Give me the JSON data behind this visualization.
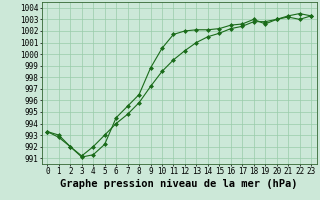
{
  "title": "Graphe pression niveau de la mer (hPa)",
  "xlabel_ticks": [
    0,
    1,
    2,
    3,
    4,
    5,
    6,
    7,
    8,
    9,
    10,
    11,
    12,
    13,
    14,
    15,
    16,
    17,
    18,
    19,
    20,
    21,
    22,
    23
  ],
  "yticks": [
    991,
    992,
    993,
    994,
    995,
    996,
    997,
    998,
    999,
    1000,
    1001,
    1002,
    1003,
    1004
  ],
  "ylim": [
    990.5,
    1004.5
  ],
  "xlim": [
    -0.5,
    23.5
  ],
  "line1_x": [
    0,
    1,
    2,
    3,
    4,
    5,
    6,
    7,
    8,
    9,
    10,
    11,
    12,
    13,
    14,
    15,
    16,
    17,
    18,
    19,
    20,
    21,
    22,
    23
  ],
  "line1_y": [
    993.3,
    993.0,
    992.0,
    991.1,
    991.3,
    992.2,
    994.5,
    995.5,
    996.5,
    998.8,
    1000.5,
    1001.7,
    1002.0,
    1002.1,
    1002.1,
    1002.2,
    1002.5,
    1002.6,
    1003.0,
    1002.6,
    1003.0,
    1003.3,
    1003.5,
    1003.3
  ],
  "line2_x": [
    0,
    1,
    2,
    3,
    4,
    5,
    6,
    7,
    8,
    9,
    10,
    11,
    12,
    13,
    14,
    15,
    16,
    17,
    18,
    19,
    20,
    21,
    22,
    23
  ],
  "line2_y": [
    993.3,
    992.8,
    992.0,
    991.2,
    992.0,
    993.0,
    994.0,
    994.8,
    995.8,
    997.2,
    998.5,
    999.5,
    1000.3,
    1001.0,
    1001.5,
    1001.8,
    1002.2,
    1002.4,
    1002.8,
    1002.8,
    1003.0,
    1003.2,
    1003.0,
    1003.3
  ],
  "line_color": "#1a6b1a",
  "bg_color": "#cce8d8",
  "grid_color": "#99ccaa",
  "title_fontsize": 7.5,
  "tick_fontsize": 5.5
}
